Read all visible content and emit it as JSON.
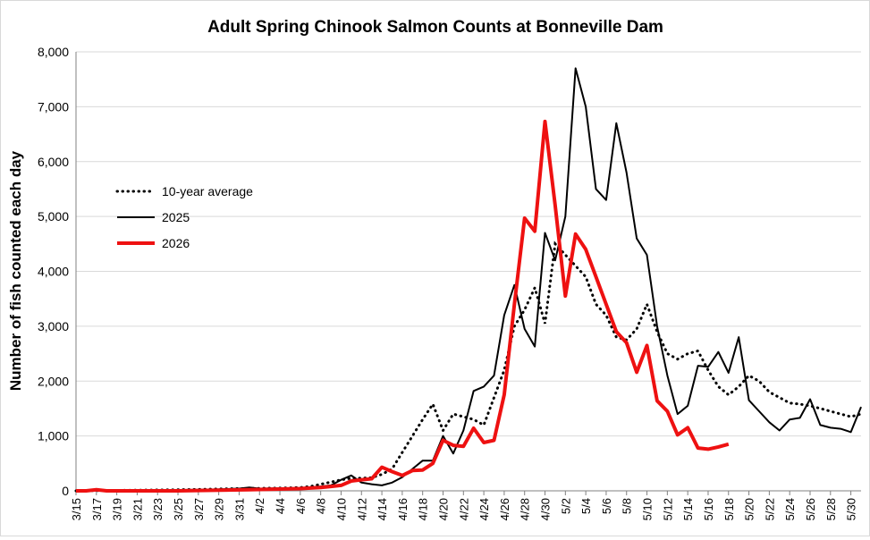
{
  "chart_data": {
    "type": "line",
    "title": "Adult Spring Chinook Salmon Counts at Bonneville Dam",
    "xlabel": "",
    "ylabel": "Number of fish counted each day",
    "ylim": [
      0,
      8000
    ],
    "yticks": [
      0,
      1000,
      2000,
      3000,
      4000,
      5000,
      6000,
      7000,
      8000
    ],
    "ytick_labels": [
      "0",
      "1,000",
      "2,000",
      "3,000",
      "4,000",
      "5,000",
      "6,000",
      "7,000",
      "8,000"
    ],
    "xtick_labels": [
      "3/15",
      "3/17",
      "3/19",
      "3/21",
      "3/23",
      "3/25",
      "3/27",
      "3/29",
      "3/31",
      "4/2",
      "4/4",
      "4/6",
      "4/8",
      "4/10",
      "4/12",
      "4/14",
      "4/16",
      "4/18",
      "4/20",
      "4/22",
      "4/24",
      "4/26",
      "4/28",
      "4/30",
      "5/2",
      "5/4",
      "5/6",
      "5/8",
      "5/10",
      "5/12",
      "5/14",
      "5/16",
      "5/18",
      "5/20",
      "5/22",
      "5/24",
      "5/26",
      "5/28",
      "5/30"
    ],
    "xrange": [
      "3/15",
      "5/31"
    ],
    "grid": "horizontal",
    "legend_position": "left",
    "series": [
      {
        "name": "10-year average",
        "style": "dotted",
        "color": "#000000",
        "x": [
          "3/15",
          "3/25",
          "3/31",
          "4/4",
          "4/6",
          "4/7",
          "4/8",
          "4/9",
          "4/10",
          "4/11",
          "4/12",
          "4/13",
          "4/14",
          "4/15",
          "4/16",
          "4/17",
          "4/18",
          "4/19",
          "4/20",
          "4/21",
          "4/22",
          "4/23",
          "4/24",
          "4/25",
          "4/26",
          "4/27",
          "4/28",
          "4/29",
          "4/30",
          "5/1",
          "5/2",
          "5/3",
          "5/4",
          "5/5",
          "5/6",
          "5/7",
          "5/8",
          "5/9",
          "5/10",
          "5/11",
          "5/12",
          "5/13",
          "5/14",
          "5/15",
          "5/16",
          "5/17",
          "5/18",
          "5/19",
          "5/20",
          "5/21",
          "5/22",
          "5/23",
          "5/24",
          "5/25",
          "5/26",
          "5/27",
          "5/28",
          "5/29",
          "5/30",
          "5/31"
        ],
        "values": [
          0,
          20,
          40,
          50,
          60,
          80,
          120,
          160,
          200,
          230,
          230,
          240,
          300,
          400,
          700,
          1000,
          1300,
          1580,
          1100,
          1400,
          1350,
          1300,
          1200,
          1700,
          2200,
          3000,
          3300,
          3700,
          3050,
          4500,
          4300,
          4100,
          3900,
          3400,
          3200,
          2800,
          2750,
          2950,
          3400,
          2900,
          2500,
          2400,
          2500,
          2550,
          2200,
          1900,
          1750,
          1900,
          2100,
          2000,
          1800,
          1700,
          1600,
          1580,
          1550,
          1500,
          1450,
          1400,
          1350,
          1400
        ]
      },
      {
        "name": "2025",
        "style": "solid",
        "color": "#000000",
        "x": [
          "3/15",
          "3/28",
          "3/31",
          "4/1",
          "4/2",
          "4/6",
          "4/8",
          "4/9",
          "4/10",
          "4/11",
          "4/12",
          "4/13",
          "4/14",
          "4/15",
          "4/16",
          "4/17",
          "4/18",
          "4/19",
          "4/20",
          "4/21",
          "4/22",
          "4/23",
          "4/24",
          "4/25",
          "4/26",
          "4/27",
          "4/28",
          "4/29",
          "4/30",
          "5/1",
          "5/2",
          "5/3",
          "5/4",
          "5/5",
          "5/6",
          "5/7",
          "5/8",
          "5/9",
          "5/10",
          "5/11",
          "5/12",
          "5/13",
          "5/14",
          "5/15",
          "5/16",
          "5/17",
          "5/18",
          "5/19",
          "5/20",
          "5/21",
          "5/22",
          "5/23",
          "5/24",
          "5/25",
          "5/26",
          "5/27",
          "5/28",
          "5/29",
          "5/30",
          "5/31"
        ],
        "values": [
          0,
          20,
          40,
          60,
          40,
          50,
          80,
          100,
          200,
          280,
          150,
          120,
          100,
          150,
          250,
          400,
          550,
          550,
          1000,
          680,
          1100,
          1820,
          1900,
          2100,
          3200,
          3750,
          2950,
          2630,
          4700,
          4200,
          5000,
          7700,
          7000,
          5500,
          5300,
          6700,
          5800,
          4600,
          4300,
          3000,
          2100,
          1400,
          1550,
          2280,
          2260,
          2530,
          2150,
          2800,
          1650,
          1450,
          1250,
          1100,
          1300,
          1330,
          1670,
          1200,
          1150,
          1130,
          1070,
          1530
        ]
      },
      {
        "name": "2026",
        "style": "solid-thick",
        "color": "#ee1111",
        "x": [
          "3/15",
          "3/16",
          "3/17",
          "3/18",
          "3/25",
          "4/1",
          "4/6",
          "4/8",
          "4/9",
          "4/10",
          "4/11",
          "4/12",
          "4/13",
          "4/14",
          "4/15",
          "4/16",
          "4/17",
          "4/18",
          "4/19",
          "4/20",
          "4/21",
          "4/22",
          "4/23",
          "4/24",
          "4/25",
          "4/26",
          "4/27",
          "4/28",
          "4/29",
          "4/30",
          "5/1",
          "5/2",
          "5/3",
          "5/4",
          "5/5",
          "5/6",
          "5/7",
          "5/8",
          "5/9",
          "5/10",
          "5/11",
          "5/12",
          "5/13",
          "5/14",
          "5/15",
          "5/16",
          "5/17",
          "5/18"
        ],
        "values": [
          0,
          0,
          20,
          0,
          0,
          20,
          40,
          60,
          80,
          100,
          180,
          200,
          220,
          430,
          350,
          280,
          370,
          380,
          500,
          920,
          830,
          810,
          1140,
          880,
          920,
          1750,
          3400,
          4970,
          4730,
          6730,
          5200,
          3550,
          4680,
          4400,
          3900,
          3400,
          2900,
          2700,
          2160,
          2650,
          1640,
          1450,
          1020,
          1150,
          780,
          760,
          800,
          850
        ]
      }
    ]
  }
}
